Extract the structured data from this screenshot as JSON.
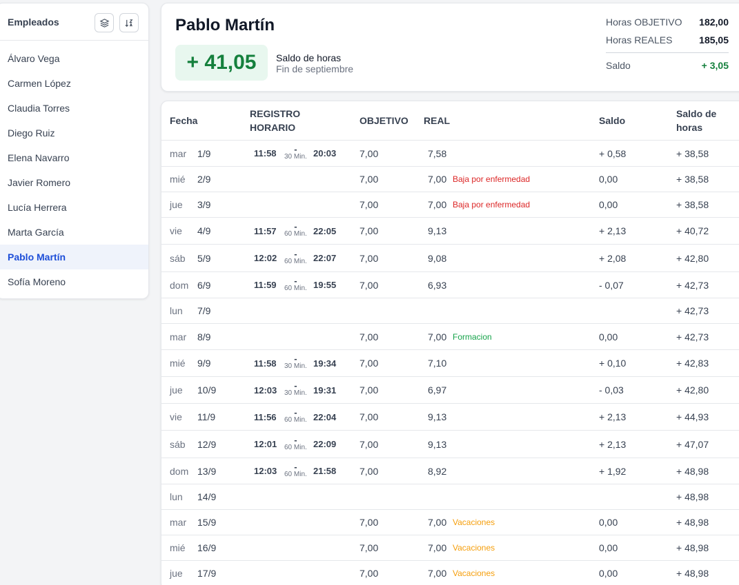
{
  "sidebar": {
    "title": "Empleados",
    "employees": [
      "Álvaro Vega",
      "Carmen López",
      "Claudia Torres",
      "Diego Ruiz",
      "Elena Navarro",
      "Javier Romero",
      "Lucía Herrera",
      "Marta García",
      "Pablo Martín",
      "Sofía Moreno"
    ],
    "active_index": 8
  },
  "summary": {
    "name": "Pablo Martín",
    "balance": "+ 41,05",
    "balance_label": "Saldo de horas",
    "balance_sub": "Fin de septiembre",
    "target_label": "Horas OBJETIVO",
    "target_value": "182,00",
    "real_label": "Horas REALES",
    "real_value": "185,05",
    "saldo_label": "Saldo",
    "saldo_value": "+ 3,05"
  },
  "table": {
    "headers": {
      "fecha": "Fecha",
      "registro_1": "REGISTRO",
      "registro_2": "HORARIO",
      "objetivo": "OBJETIVO",
      "real": "REAL",
      "saldo": "Saldo",
      "saldo_horas_1": "Saldo de",
      "saldo_horas_2": "horas"
    },
    "rows": [
      {
        "day": "mar",
        "date": "1/9",
        "start": "11:58",
        "brk": "30 Min.",
        "end": "20:03",
        "obj": "7,00",
        "real": "7,58",
        "note": "",
        "note_type": "",
        "saldo": "+ 0,58",
        "cum": "+ 38,58"
      },
      {
        "day": "mié",
        "date": "2/9",
        "start": "",
        "brk": "",
        "end": "",
        "obj": "7,00",
        "real": "7,00",
        "note": "Baja por enfermedad",
        "note_type": "sick",
        "saldo": "0,00",
        "cum": "+ 38,58"
      },
      {
        "day": "jue",
        "date": "3/9",
        "start": "",
        "brk": "",
        "end": "",
        "obj": "7,00",
        "real": "7,00",
        "note": "Baja por enfermedad",
        "note_type": "sick",
        "saldo": "0,00",
        "cum": "+ 38,58"
      },
      {
        "day": "vie",
        "date": "4/9",
        "start": "11:57",
        "brk": "60 Min.",
        "end": "22:05",
        "obj": "7,00",
        "real": "9,13",
        "note": "",
        "note_type": "",
        "saldo": "+ 2,13",
        "cum": "+ 40,72"
      },
      {
        "day": "sáb",
        "date": "5/9",
        "start": "12:02",
        "brk": "60 Min.",
        "end": "22:07",
        "obj": "7,00",
        "real": "9,08",
        "note": "",
        "note_type": "",
        "saldo": "+ 2,08",
        "cum": "+ 42,80"
      },
      {
        "day": "dom",
        "date": "6/9",
        "start": "11:59",
        "brk": "60 Min.",
        "end": "19:55",
        "obj": "7,00",
        "real": "6,93",
        "note": "",
        "note_type": "",
        "saldo": "- 0,07",
        "cum": "+ 42,73"
      },
      {
        "day": "lun",
        "date": "7/9",
        "start": "",
        "brk": "",
        "end": "",
        "obj": "",
        "real": "",
        "note": "",
        "note_type": "",
        "saldo": "",
        "cum": "+ 42,73"
      },
      {
        "day": "mar",
        "date": "8/9",
        "start": "",
        "brk": "",
        "end": "",
        "obj": "7,00",
        "real": "7,00",
        "note": "Formacion",
        "note_type": "training",
        "saldo": "0,00",
        "cum": "+ 42,73"
      },
      {
        "day": "mié",
        "date": "9/9",
        "start": "11:58",
        "brk": "30 Min.",
        "end": "19:34",
        "obj": "7,00",
        "real": "7,10",
        "note": "",
        "note_type": "",
        "saldo": "+ 0,10",
        "cum": "+ 42,83"
      },
      {
        "day": "jue",
        "date": "10/9",
        "start": "12:03",
        "brk": "30 Min.",
        "end": "19:31",
        "obj": "7,00",
        "real": "6,97",
        "note": "",
        "note_type": "",
        "saldo": "- 0,03",
        "cum": "+ 42,80"
      },
      {
        "day": "vie",
        "date": "11/9",
        "start": "11:56",
        "brk": "60 Min.",
        "end": "22:04",
        "obj": "7,00",
        "real": "9,13",
        "note": "",
        "note_type": "",
        "saldo": "+ 2,13",
        "cum": "+ 44,93"
      },
      {
        "day": "sáb",
        "date": "12/9",
        "start": "12:01",
        "brk": "60 Min.",
        "end": "22:09",
        "obj": "7,00",
        "real": "9,13",
        "note": "",
        "note_type": "",
        "saldo": "+ 2,13",
        "cum": "+ 47,07"
      },
      {
        "day": "dom",
        "date": "13/9",
        "start": "12:03",
        "brk": "60 Min.",
        "end": "21:58",
        "obj": "7,00",
        "real": "8,92",
        "note": "",
        "note_type": "",
        "saldo": "+ 1,92",
        "cum": "+ 48,98"
      },
      {
        "day": "lun",
        "date": "14/9",
        "start": "",
        "brk": "",
        "end": "",
        "obj": "",
        "real": "",
        "note": "",
        "note_type": "",
        "saldo": "",
        "cum": "+ 48,98"
      },
      {
        "day": "mar",
        "date": "15/9",
        "start": "",
        "brk": "",
        "end": "",
        "obj": "7,00",
        "real": "7,00",
        "note": "Vacaciones",
        "note_type": "vacation",
        "saldo": "0,00",
        "cum": "+ 48,98"
      },
      {
        "day": "mié",
        "date": "16/9",
        "start": "",
        "brk": "",
        "end": "",
        "obj": "7,00",
        "real": "7,00",
        "note": "Vacaciones",
        "note_type": "vacation",
        "saldo": "0,00",
        "cum": "+ 48,98"
      },
      {
        "day": "jue",
        "date": "17/9",
        "start": "",
        "brk": "",
        "end": "",
        "obj": "7,00",
        "real": "7,00",
        "note": "Vacaciones",
        "note_type": "vacation",
        "saldo": "0,00",
        "cum": "+ 48,98"
      }
    ]
  },
  "colors": {
    "sick": "#dc2626",
    "training": "#16a34a",
    "vacation": "#f59e0b",
    "accent": "#1d4ed8",
    "positive": "#15803d"
  },
  "icons": {
    "layers": "layers-icon",
    "sort": "sort-icon"
  }
}
